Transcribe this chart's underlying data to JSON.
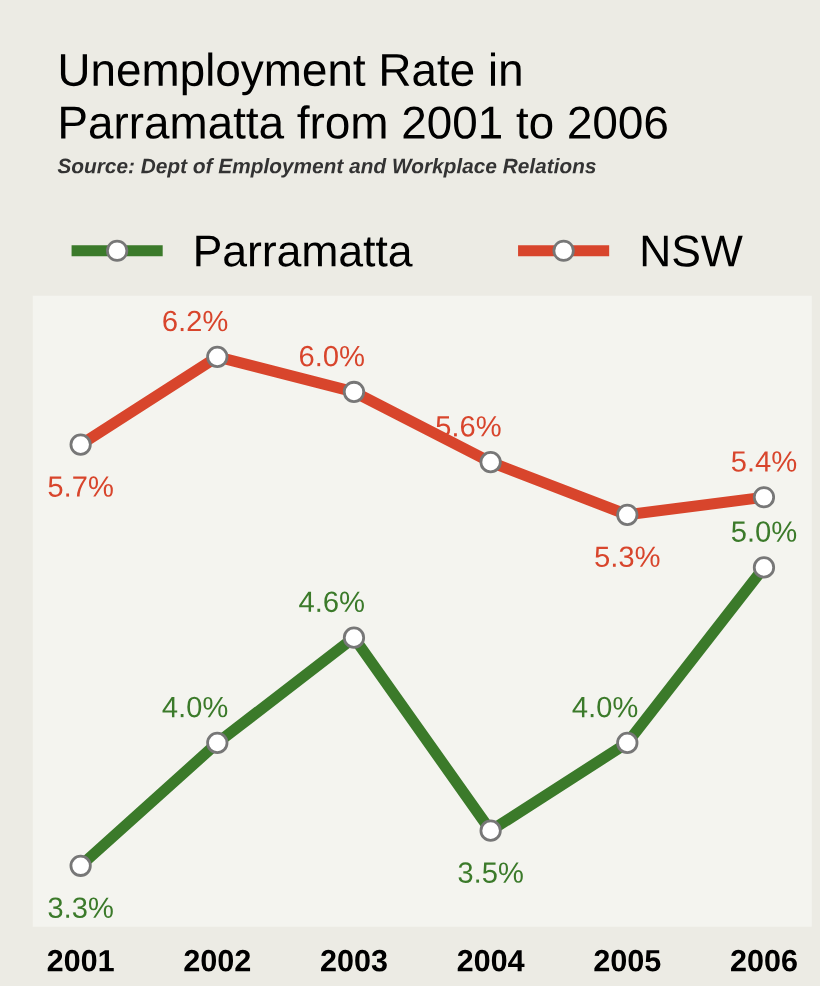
{
  "chart_data": {
    "type": "line",
    "title": "Unemployment Rate in\nParramatta from 2001 to 2006",
    "subtitle": "Source: Dept of Employment and Workplace Relations",
    "categories": [
      "2001",
      "2002",
      "2003",
      "2004",
      "2005",
      "2006"
    ],
    "series": [
      {
        "name": "Parramatta",
        "color": "#3b7a2a",
        "values": [
          3.3,
          4.0,
          4.6,
          3.5,
          4.0,
          5.0
        ],
        "value_labels": [
          "3.3%",
          "4.0%",
          "4.6%",
          "3.5%",
          "4.0%",
          "5.0%"
        ]
      },
      {
        "name": "NSW",
        "color": "#d8452c",
        "values": [
          5.7,
          6.2,
          6.0,
          5.6,
          5.3,
          5.4
        ],
        "value_labels": [
          "5.7%",
          "6.2%",
          "6.0%",
          "5.6%",
          "5.3%",
          "5.4%"
        ]
      }
    ],
    "tick_labels": "x",
    "legend": "top",
    "marker": "circle",
    "line_style": "solid"
  }
}
